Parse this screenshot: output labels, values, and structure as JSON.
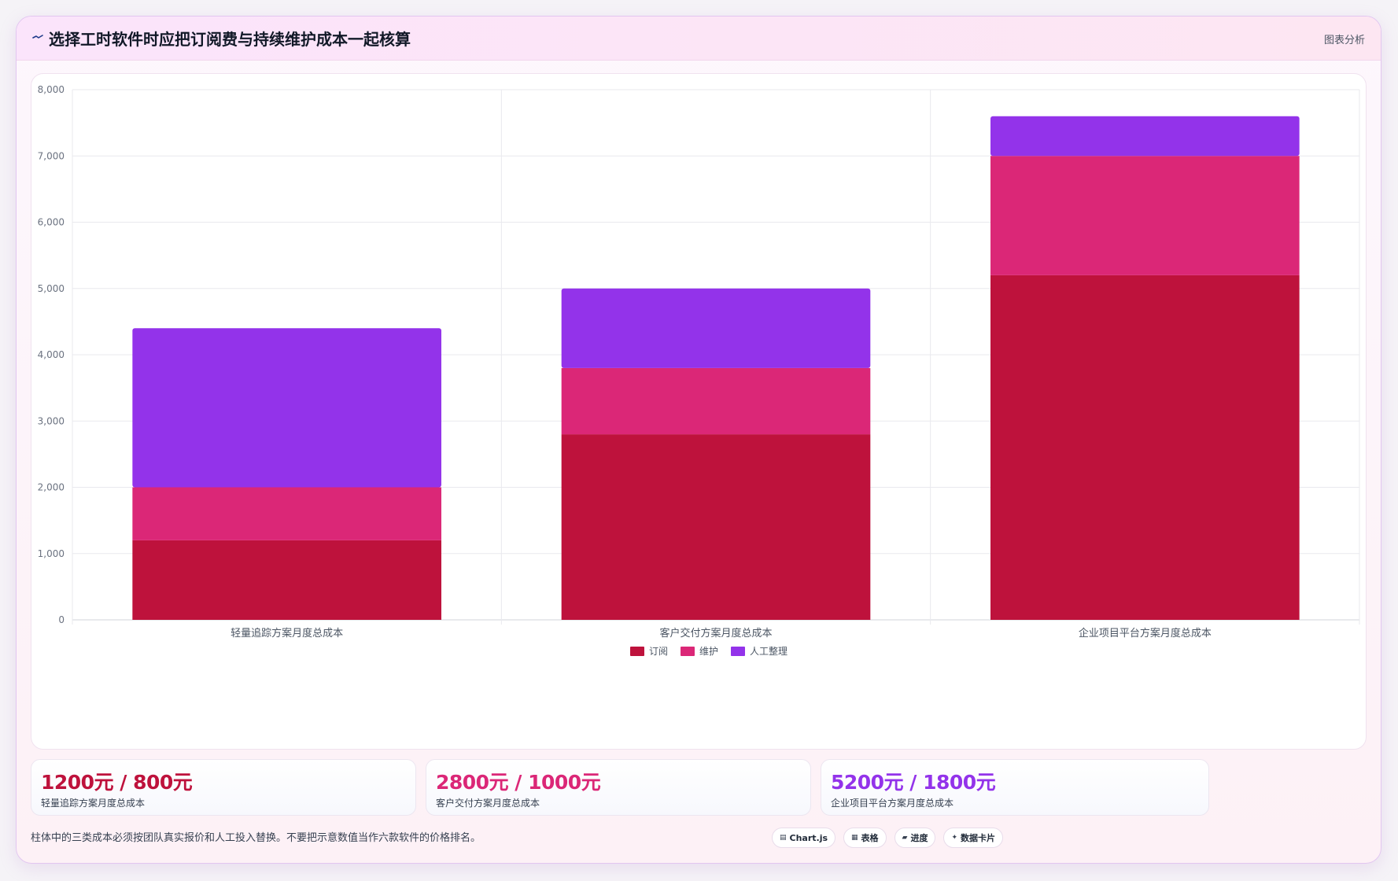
{
  "header": {
    "title_icon": "trend-line-icon",
    "title": "选择工时软件时应把订阅费与持续维护成本一起核算",
    "tag": "图表分析"
  },
  "chart_data": {
    "type": "bar",
    "stacked": true,
    "categories": [
      "轻量追踪方案月度总成本",
      "客户交付方案月度总成本",
      "企业项目平台方案月度总成本"
    ],
    "series": [
      {
        "name": "订阅",
        "color": "#be123c",
        "values": [
          1200,
          2800,
          5200
        ]
      },
      {
        "name": "维护",
        "color": "#db2777",
        "values": [
          800,
          1000,
          1800
        ]
      },
      {
        "name": "人工整理",
        "color": "#9333ea",
        "values": [
          2400,
          1200,
          600
        ]
      }
    ],
    "ylim": [
      0,
      8000
    ],
    "yticks": [
      "0",
      "1,000",
      "2,000",
      "3,000",
      "4,000",
      "5,000",
      "6,000",
      "7,000",
      "8,000"
    ],
    "grid": true,
    "legend": "bottom",
    "xlabel": "",
    "ylabel": ""
  },
  "kpis": [
    {
      "value": "1200元 / 800元",
      "label": "轻量追踪方案月度总成本",
      "color": "#be123c"
    },
    {
      "value": "2800元 / 1000元",
      "label": "客户交付方案月度总成本",
      "color": "#db2777"
    },
    {
      "value": "5200元 / 1800元",
      "label": "企业项目平台方案月度总成本",
      "color": "#9333ea"
    }
  ],
  "footnote": "柱体中的三类成本必须按团队真实报价和人工投入替换。不要把示意数值当作六款软件的价格排名。",
  "chips": [
    {
      "icon": "chart-icon",
      "glyph": "▤",
      "label": "Chart.js"
    },
    {
      "icon": "table-icon",
      "glyph": "▦",
      "label": "表格"
    },
    {
      "icon": "progress-icon",
      "glyph": "▰",
      "label": "进度"
    },
    {
      "icon": "sparkle-icon",
      "glyph": "✦",
      "label": "数据卡片"
    }
  ]
}
